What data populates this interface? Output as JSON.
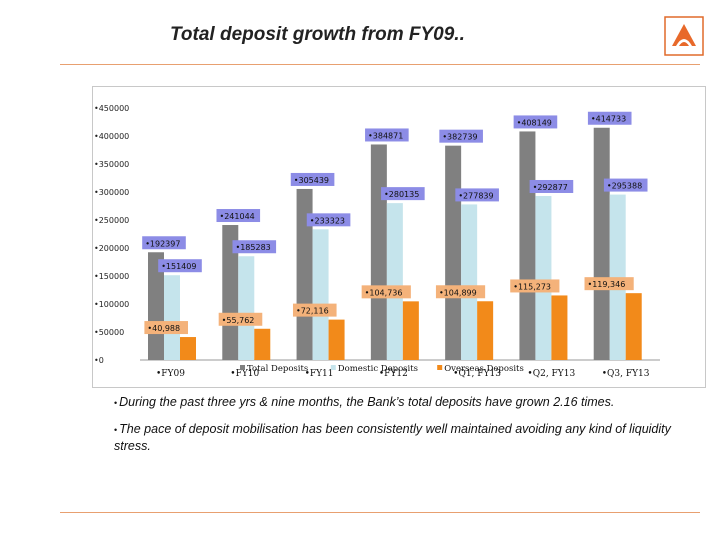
{
  "slide": {
    "title": "Total deposit growth from FY09..",
    "notes": [
      "During the past three yrs & nine months, the Bank’s total deposits have grown 2.16 times.",
      "The pace of deposit mobilisation has been consistently well maintained avoiding any kind of liquidity stress."
    ],
    "logo_icon": "bank-of-baroda-logo-icon",
    "accent_color": "#e8a070"
  },
  "chart_data": {
    "type": "bar",
    "title": "",
    "xlabel": "",
    "ylabel": "",
    "ylim": [
      0,
      450000
    ],
    "yticks": [
      "0",
      "50000",
      "100000",
      "150000",
      "200000",
      "250000",
      "300000",
      "350000",
      "400000",
      "450000"
    ],
    "categories": [
      "FY09",
      "FY10",
      "FY11",
      "FY12",
      "Q1, FY13",
      "Q2, FY13",
      "Q3, FY13"
    ],
    "grid": false,
    "legend_position": "bottom",
    "series": [
      {
        "name": "Total Deposits",
        "color": "#808080",
        "values": [
          192397,
          241044,
          305439,
          384871,
          382739,
          408149,
          414733
        ],
        "labels": [
          "192397",
          "241044",
          "305439",
          "384871",
          "382739",
          "408149",
          "414733"
        ]
      },
      {
        "name": "Domestic Deposits",
        "color": "#c5e4ec",
        "values": [
          151409,
          185283,
          233323,
          280135,
          277839,
          292877,
          295388
        ],
        "labels": [
          "151409",
          "185283",
          "233323",
          "280135",
          "277839",
          "292877",
          "295388"
        ]
      },
      {
        "name": "Overseas Deposits",
        "color": "#f28a1a",
        "values": [
          40988,
          55762,
          72116,
          104736,
          104899,
          115273,
          119346
        ],
        "labels": [
          "40,988",
          "55,762",
          "72,116",
          "104,736",
          "104,899",
          "115,273",
          "119,346"
        ]
      }
    ]
  }
}
